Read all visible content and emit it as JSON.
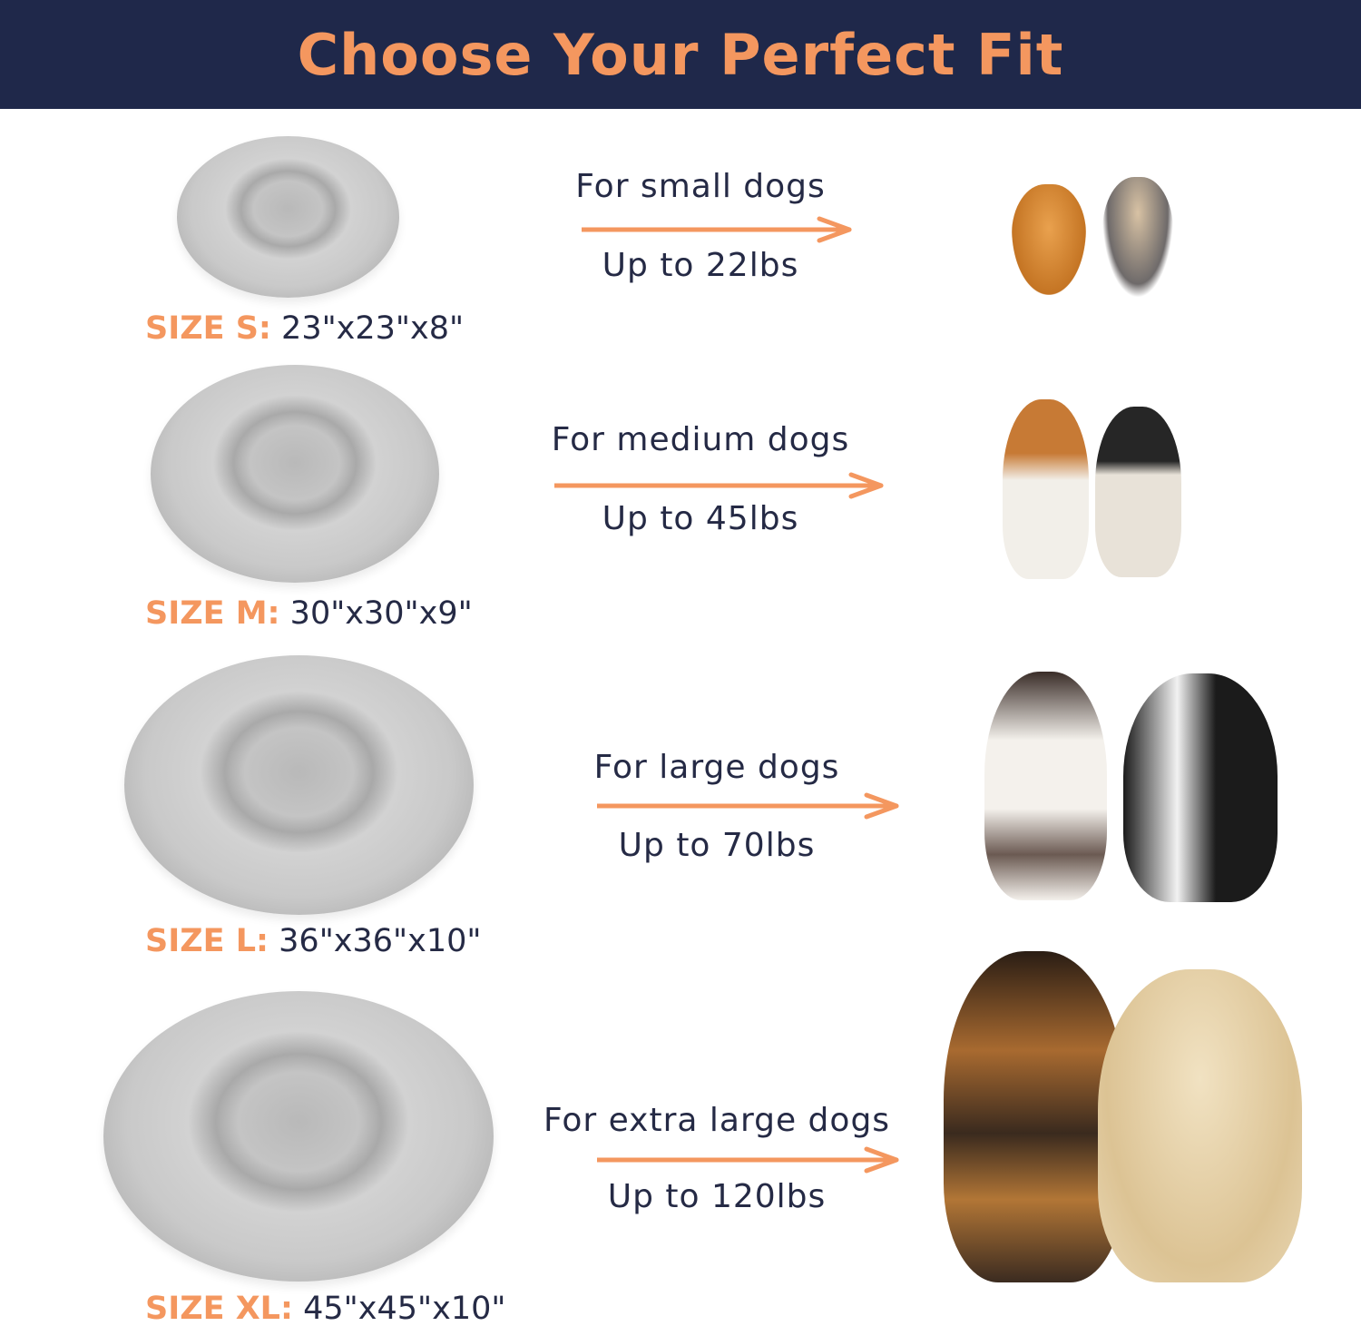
{
  "header": {
    "title": "Choose Your Perfect Fit"
  },
  "colors": {
    "navy": "#1f284a",
    "accent": "#f4975f",
    "text": "#252a45",
    "bed": "#c6c6c6"
  },
  "sizes": [
    {
      "key": "SIZE S:",
      "dims": "23\"x23\"x8\"",
      "for": "For small dogs",
      "limit": "Up to 22lbs"
    },
    {
      "key": "SIZE M:",
      "dims": "30\"x30\"x9\"",
      "for": "For medium dogs",
      "limit": "Up to 45lbs"
    },
    {
      "key": "SIZE L:",
      "dims": "36\"x36\"x10\"",
      "for": "For large dogs",
      "limit": "Up to 70lbs"
    },
    {
      "key": "SIZE XL:",
      "dims": "45\"x45\"x10\"",
      "for": "For extra large dogs",
      "limit": "Up to 120lbs"
    }
  ]
}
